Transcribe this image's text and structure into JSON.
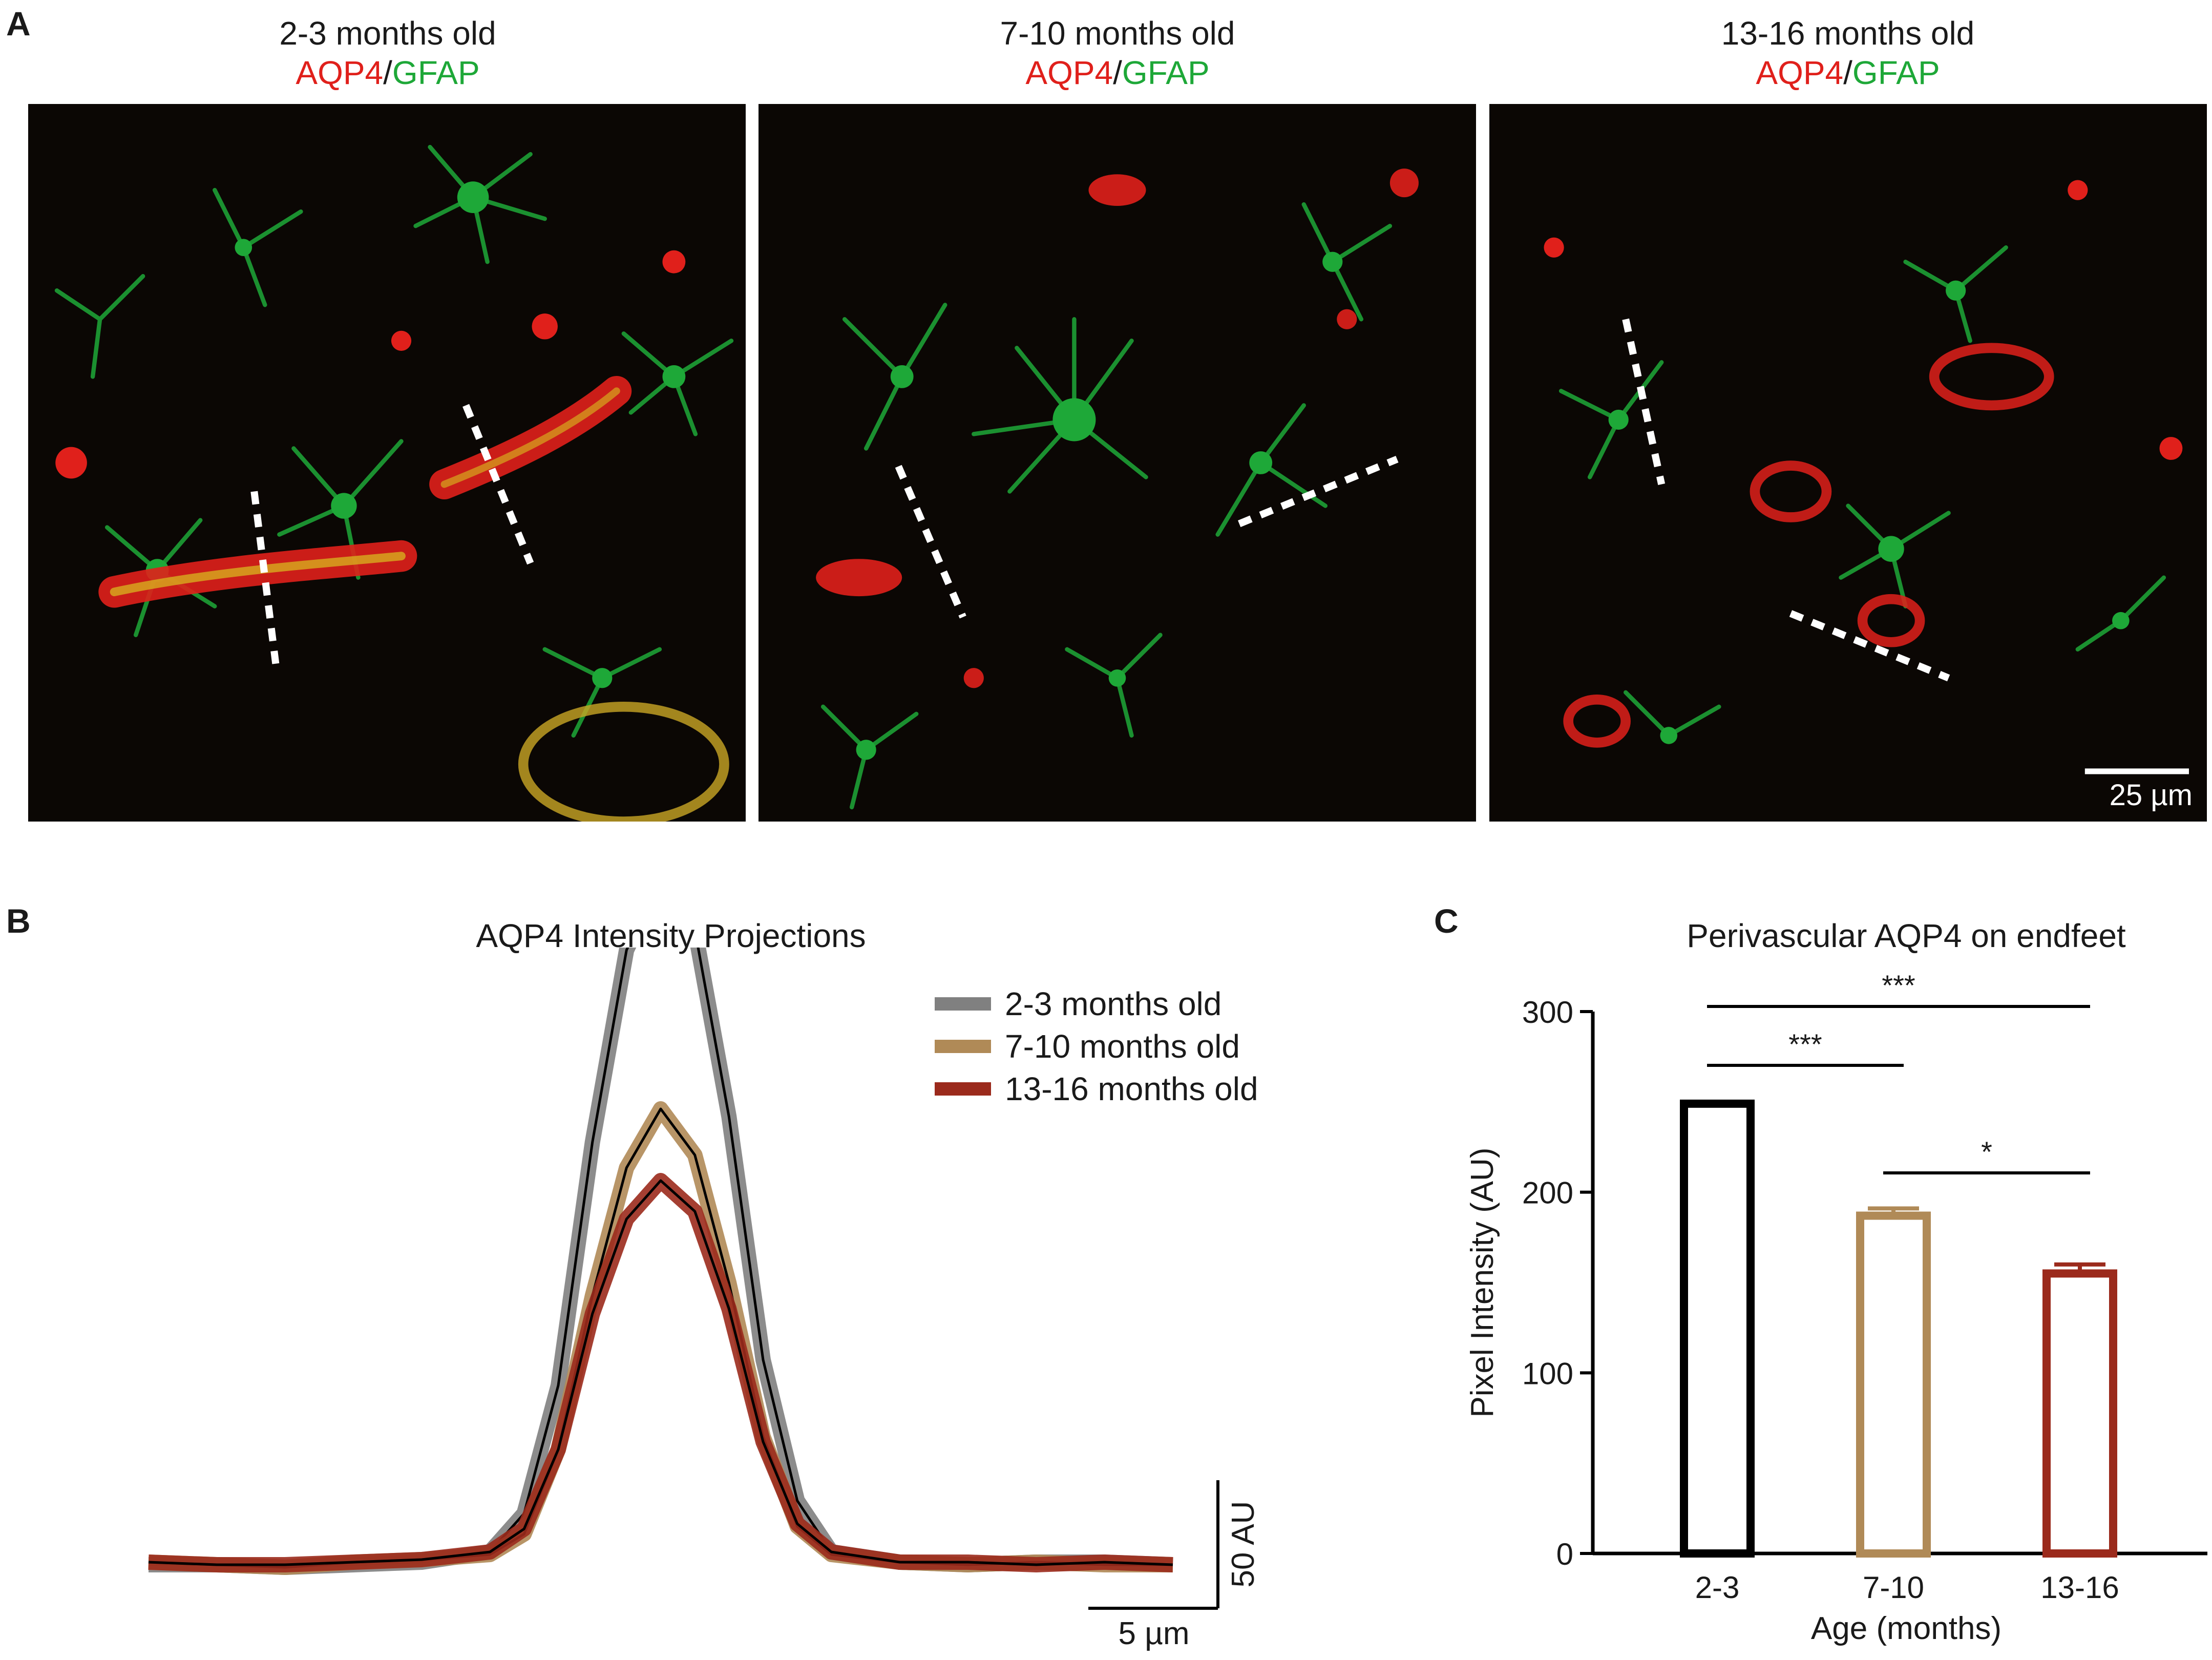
{
  "panel_labels": [
    "A",
    "B",
    "C"
  ],
  "panel_a": {
    "images": [
      {
        "age_label": "2-3 months old",
        "stain_a": "AQP4",
        "separator": "/",
        "stain_b": "GFAP"
      },
      {
        "age_label": "7-10 months old",
        "stain_a": "AQP4",
        "separator": "/",
        "stain_b": "GFAP"
      },
      {
        "age_label": "13-16 months old",
        "stain_a": "AQP4",
        "separator": "/",
        "stain_b": "GFAP"
      }
    ],
    "scale_bar_label": "25 µm",
    "colors": {
      "aqp4": "#e0201b",
      "gfap": "#1ea838"
    }
  },
  "chart_data": [
    {
      "type": "line",
      "title": "AQP4 Intensity Projections",
      "scale_bar_x_label": "5 µm",
      "scale_bar_y_label": "50 AU",
      "legend_position": "top-right",
      "x_um": [
        -15,
        -13,
        -11,
        -9,
        -7,
        -5,
        -4,
        -3,
        -2,
        -1,
        0,
        1,
        2,
        3,
        4,
        5,
        7,
        9,
        11,
        13,
        15
      ],
      "series": [
        {
          "name": "2-3 months old",
          "color": "#808080",
          "values": [
            0,
            0,
            -1,
            0,
            1,
            5,
            20,
            70,
            165,
            240,
            268,
            248,
            175,
            80,
            25,
            5,
            1,
            0,
            1,
            1,
            0
          ]
        },
        {
          "name": "7-10 months old",
          "color": "#b08a57",
          "values": [
            1,
            0,
            -1,
            1,
            2,
            4,
            12,
            45,
            105,
            155,
            178,
            160,
            110,
            50,
            15,
            4,
            1,
            0,
            1,
            0,
            0
          ]
        },
        {
          "name": "13-16 months old",
          "color": "#9b2a1c",
          "values": [
            1,
            0,
            0,
            1,
            2,
            5,
            14,
            45,
            98,
            135,
            150,
            138,
            100,
            48,
            16,
            5,
            1,
            1,
            0,
            1,
            0
          ]
        }
      ]
    },
    {
      "type": "bar",
      "title": "Perivascular AQP4 on endfeet",
      "xlabel": "Age (months)",
      "ylabel": "Pixel Intensity (AU)",
      "ylim": [
        0,
        300
      ],
      "yticks": [
        0,
        100,
        200,
        300
      ],
      "categories": [
        "2-3",
        "7-10",
        "13-16"
      ],
      "values": [
        249,
        187,
        155
      ],
      "errors": [
        1,
        4,
        5
      ],
      "colors": [
        "#000000",
        "#b08a57",
        "#9b2a1c"
      ],
      "significance": [
        {
          "from": 0,
          "to": 2,
          "label": "***"
        },
        {
          "from": 0,
          "to": 1,
          "label": "***"
        },
        {
          "from": 1,
          "to": 2,
          "label": "*"
        }
      ]
    }
  ]
}
